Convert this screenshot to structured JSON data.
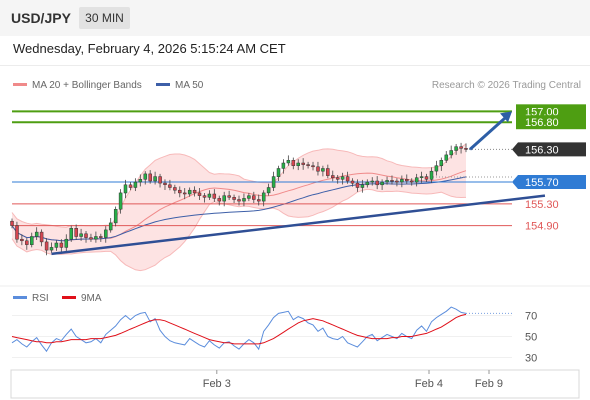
{
  "header": {
    "symbol": "USD/JPY",
    "timeframe": "30 MIN"
  },
  "datetime": "Wednesday, February 4, 2026 5:15:24 AM CET",
  "legend": {
    "ma20_label": "MA 20 + Bollinger Bands",
    "ma50_label": "MA 50",
    "source": "Research © 2026 Trading Central",
    "rsi_label": "RSI",
    "rsi_ma_label": "9MA"
  },
  "colors": {
    "bull_candle": "#27ae48",
    "bear_candle": "#d64550",
    "ma20": "#f08a8a",
    "bollinger_fill": "#fde0e0",
    "ma50": "#3d5fa8",
    "trendline": "#2f4f95",
    "target": "#4e9e12",
    "pivot": "#2f7bd4",
    "support": "#e05858",
    "current": "#333333",
    "arrow": "#2d5ea6",
    "rsi": "#5b8ddc",
    "rsi_ma": "#e0101a"
  },
  "chart_data": [
    {
      "type": "candlestick",
      "title": "USD/JPY",
      "timeframe": "30 MIN",
      "ylim": [
        153.9,
        157.3
      ],
      "x_ticks": [
        "Feb 3",
        "Feb 4",
        "Feb 9"
      ],
      "closes": [
        154.9,
        154.65,
        154.62,
        154.55,
        154.7,
        154.78,
        154.6,
        154.45,
        154.5,
        154.58,
        154.5,
        154.65,
        154.85,
        154.7,
        154.75,
        154.68,
        154.65,
        154.7,
        154.68,
        154.82,
        154.95,
        155.2,
        155.5,
        155.65,
        155.6,
        155.7,
        155.75,
        155.85,
        155.72,
        155.8,
        155.68,
        155.65,
        155.6,
        155.55,
        155.5,
        155.48,
        155.55,
        155.5,
        155.45,
        155.42,
        155.48,
        155.4,
        155.35,
        155.45,
        155.42,
        155.38,
        155.35,
        155.4,
        155.45,
        155.38,
        155.35,
        155.5,
        155.6,
        155.8,
        155.95,
        156.05,
        156.1,
        156.0,
        156.05,
        156.02,
        156.0,
        155.98,
        155.9,
        155.95,
        155.82,
        155.78,
        155.75,
        155.8,
        155.72,
        155.68,
        155.6,
        155.65,
        155.7,
        155.72,
        155.65,
        155.7,
        155.73,
        155.72,
        155.7,
        155.75,
        155.72,
        155.7,
        155.78,
        155.8,
        155.75,
        155.9,
        156.0,
        156.1,
        156.2,
        156.28,
        156.35,
        156.32,
        156.3
      ],
      "levels": [
        {
          "value": 157.0,
          "label": "157.00",
          "kind": "target"
        },
        {
          "value": 156.8,
          "label": "156.80",
          "kind": "target"
        },
        {
          "value": 156.3,
          "label": "156.30",
          "kind": "current"
        },
        {
          "value": 155.7,
          "label": "155.70",
          "kind": "pivot"
        },
        {
          "value": 155.3,
          "label": "155.30",
          "kind": "support"
        },
        {
          "value": 154.9,
          "label": "154.90",
          "kind": "support"
        }
      ],
      "trendline": {
        "from": {
          "index": 8,
          "value": 154.38
        },
        "to": {
          "index": 108,
          "value": 155.45
        }
      },
      "arrow": {
        "from": 156.3,
        "to": 157.0
      },
      "series": [
        {
          "name": "MA 20 + Bollinger Bands",
          "kind": "ma20"
        },
        {
          "name": "MA 50",
          "kind": "ma50"
        }
      ]
    },
    {
      "type": "line",
      "title": "RSI",
      "ylim": [
        20,
        80
      ],
      "y_ticks": [
        70,
        50,
        30
      ],
      "series": [
        {
          "name": "RSI",
          "values": [
            44,
            47,
            43,
            40,
            45,
            49,
            42,
            36,
            44,
            48,
            46,
            52,
            57,
            50,
            47,
            44,
            45,
            48,
            44,
            52,
            56,
            60,
            66,
            70,
            66,
            70,
            72,
            73,
            64,
            67,
            56,
            50,
            46,
            44,
            43,
            42,
            48,
            45,
            42,
            40,
            46,
            42,
            39,
            44,
            45,
            41,
            38,
            43,
            47,
            44,
            38,
            55,
            61,
            68,
            72,
            73,
            74,
            66,
            69,
            67,
            63,
            61,
            55,
            58,
            50,
            48,
            47,
            50,
            44,
            42,
            40,
            45,
            50,
            52,
            46,
            49,
            52,
            50,
            48,
            53,
            50,
            48,
            56,
            60,
            55,
            64,
            68,
            71,
            74,
            78,
            76,
            73,
            72
          ]
        },
        {
          "name": "9MA",
          "values": [
            50,
            49,
            48,
            47,
            46,
            45,
            45,
            44,
            44,
            45,
            45,
            46,
            47,
            47,
            47,
            47,
            48,
            48,
            48,
            49,
            50,
            51,
            53,
            55,
            57,
            59,
            61,
            63,
            65,
            66,
            66,
            65,
            63,
            61,
            59,
            57,
            55,
            53,
            51,
            49,
            47,
            46,
            45,
            44,
            44,
            43,
            43,
            43,
            43,
            43,
            43,
            44,
            46,
            48,
            51,
            54,
            57,
            60,
            63,
            65,
            66,
            67,
            66,
            65,
            63,
            61,
            59,
            57,
            55,
            53,
            51,
            50,
            49,
            48,
            48,
            48,
            48,
            49,
            49,
            50,
            50,
            50,
            51,
            52,
            53,
            55,
            57,
            59,
            62,
            65,
            68,
            70,
            71
          ]
        }
      ]
    }
  ]
}
